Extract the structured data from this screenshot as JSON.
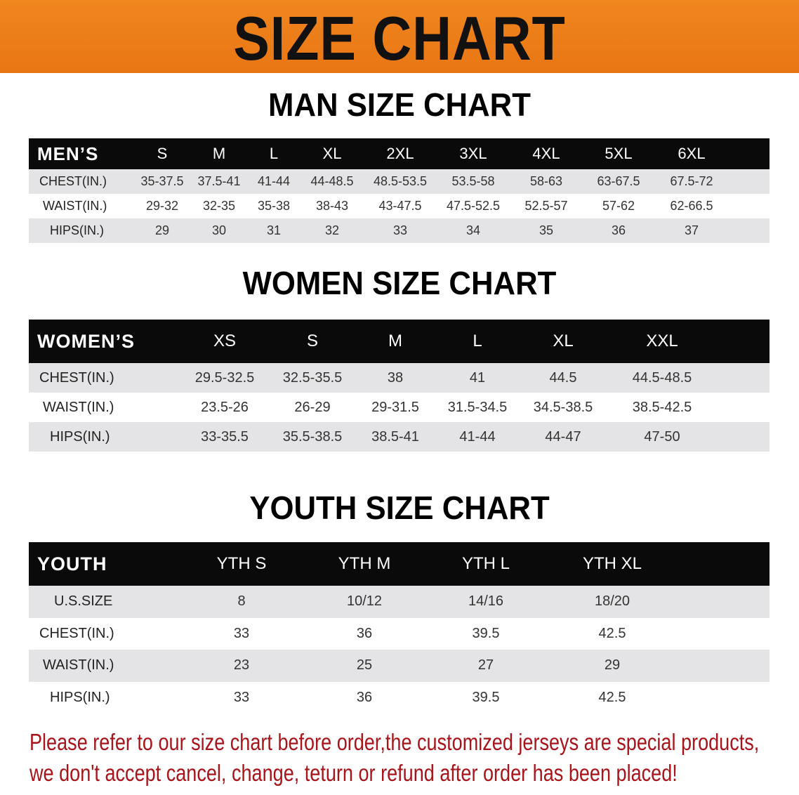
{
  "banner": {
    "title": "SIZE CHART",
    "color": "#ec7e1a"
  },
  "men": {
    "title": "MAN SIZE CHART",
    "header_label": "MEN’S",
    "sizes": [
      "S",
      "M",
      "L",
      "XL",
      "2XL",
      "3XL",
      "4XL",
      "5XL",
      "6XL"
    ],
    "rows": [
      {
        "label": "CHEST(IN.)",
        "values": [
          "35-37.5",
          "37.5-41",
          "41-44",
          "44-48.5",
          "48.5-53.5",
          "53.5-58",
          "58-63",
          "63-67.5",
          "67.5-72"
        ]
      },
      {
        "label": "WAIST(IN.)",
        "values": [
          "29-32",
          "32-35",
          "35-38",
          "38-43",
          "43-47.5",
          "47.5-52.5",
          "52.5-57",
          "57-62",
          "62-66.5"
        ]
      },
      {
        "label": "HIPS(IN.)",
        "values": [
          "29",
          "30",
          "31",
          "32",
          "33",
          "34",
          "35",
          "36",
          "37"
        ]
      }
    ]
  },
  "women": {
    "title": "WOMEN SIZE CHART",
    "header_label": "WOMEN’S",
    "sizes": [
      "XS",
      "S",
      "M",
      "L",
      "XL",
      "XXL"
    ],
    "rows": [
      {
        "label": "CHEST(IN.)",
        "values": [
          "29.5-32.5",
          "32.5-35.5",
          "38",
          "41",
          "44.5",
          "44.5-48.5"
        ]
      },
      {
        "label": "WAIST(IN.)",
        "values": [
          "23.5-26",
          "26-29",
          "29-31.5",
          "31.5-34.5",
          "34.5-38.5",
          "38.5-42.5"
        ]
      },
      {
        "label": "HIPS(IN.)",
        "values": [
          "33-35.5",
          "35.5-38.5",
          "38.5-41",
          "41-44",
          "44-47",
          "47-50"
        ]
      }
    ]
  },
  "youth": {
    "title": "YOUTH SIZE CHART",
    "header_label": "YOUTH",
    "sizes": [
      "YTH S",
      "YTH M",
      "YTH L",
      "YTH XL"
    ],
    "rows": [
      {
        "label": "U.S.SIZE",
        "values": [
          "8",
          "10/12",
          "14/16",
          "18/20"
        ]
      },
      {
        "label": "CHEST(IN.)",
        "values": [
          "33",
          "36",
          "39.5",
          "42.5"
        ]
      },
      {
        "label": "WAIST(IN.)",
        "values": [
          "23",
          "25",
          "27",
          "29"
        ]
      },
      {
        "label": "HIPS(IN.)",
        "values": [
          "33",
          "36",
          "39.5",
          "42.5"
        ]
      }
    ]
  },
  "notice": {
    "line1": "Please refer to our size chart before order,the customized jerseys are special products,",
    "line2": "we don't accept cancel, change, teturn or refund after order has been placed!",
    "color": "#a8141a"
  }
}
